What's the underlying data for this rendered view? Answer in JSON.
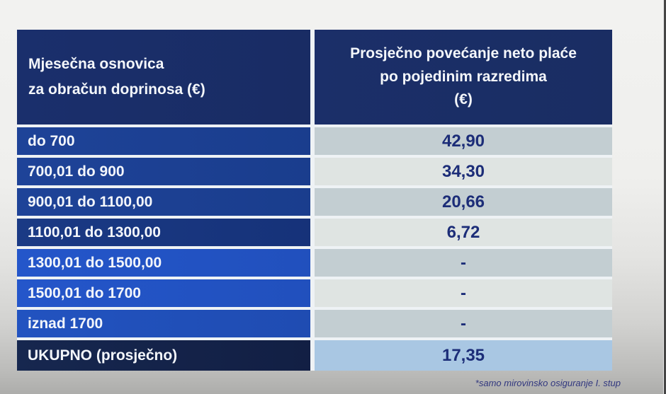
{
  "table": {
    "header": {
      "col1_lines": [
        "Mjesečna osnovica",
        "za obračun doprinosa (€)"
      ],
      "col2_lines": [
        "Prosječno povećanje neto plaće",
        "po pojedinim razredima",
        "(€)"
      ]
    },
    "rows": [
      {
        "label": "do 700",
        "value": "42,90"
      },
      {
        "label": "700,01 do 900",
        "value": "34,30"
      },
      {
        "label": "900,01 do 1100,00",
        "value": "20,66"
      },
      {
        "label": "1100,01 do 1300,00",
        "value": "6,72"
      },
      {
        "label": "1300,01 do 1500,00",
        "value": "-"
      },
      {
        "label": "1500,01 do 1700",
        "value": "-"
      },
      {
        "label": "iznad 1700",
        "value": "-"
      },
      {
        "label": "UKUPNO (prosječno)",
        "value": "17,35"
      }
    ],
    "footnote": "*samo mirovinsko osiguranje I. stup"
  },
  "colors": {
    "header_bg": "#1a2e68",
    "label_row_mid_bg": "#1c4193",
    "label_row_darker_bg": "#17367c",
    "label_row_bright_bg": "#2254c6",
    "label_row_bright2_bg": "#2151b8",
    "total_row_bg": "#14254e",
    "value_cell_dark_bg": "#c3ced2",
    "value_cell_light_bg": "#dfe4e2",
    "total_value_bg": "#a9c7e3",
    "header_text": "#f4f7fb",
    "label_text": "#f3f6fb",
    "value_text": "#1c2d78",
    "footnote_text": "#31377f"
  }
}
